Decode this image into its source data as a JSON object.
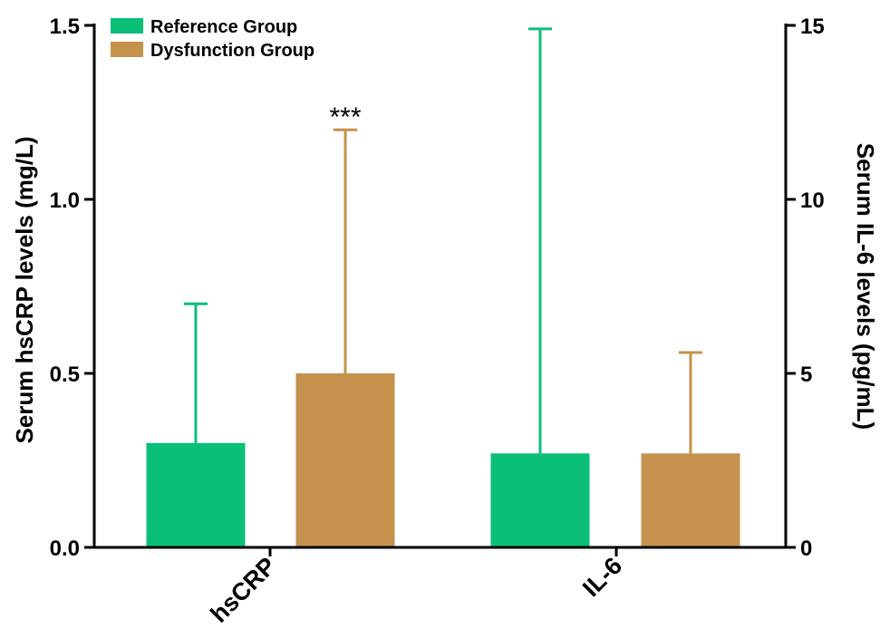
{
  "chart_data": {
    "type": "bar",
    "categories": [
      "hsCRP",
      "IL-6"
    ],
    "series": [
      {
        "name": "Reference Group",
        "color": "#0bbf78",
        "values": [
          0.3,
          2.7
        ],
        "error_upper": [
          0.7,
          14.9
        ],
        "axis": [
          "left",
          "right"
        ]
      },
      {
        "name": "Dysfunction Group",
        "color": "#c5924d",
        "values": [
          0.5,
          2.7
        ],
        "error_upper": [
          1.2,
          5.6
        ],
        "axis": [
          "left",
          "right"
        ]
      }
    ],
    "left_axis": {
      "label": "Serum hsCRP levels (mg/L)",
      "ylim": [
        0,
        1.5
      ],
      "ticks": [
        "0.0",
        "0.5",
        "1.0",
        "1.5"
      ]
    },
    "right_axis": {
      "label": "Serum IL-6 levels (pg/mL)",
      "ylim": [
        0,
        15
      ],
      "ticks": [
        "0",
        "5",
        "10",
        "15"
      ]
    },
    "annotations": [
      {
        "text": "***",
        "category": "hsCRP",
        "series": "Dysfunction Group"
      }
    ],
    "legend_position": "top-left",
    "grid": false
  }
}
